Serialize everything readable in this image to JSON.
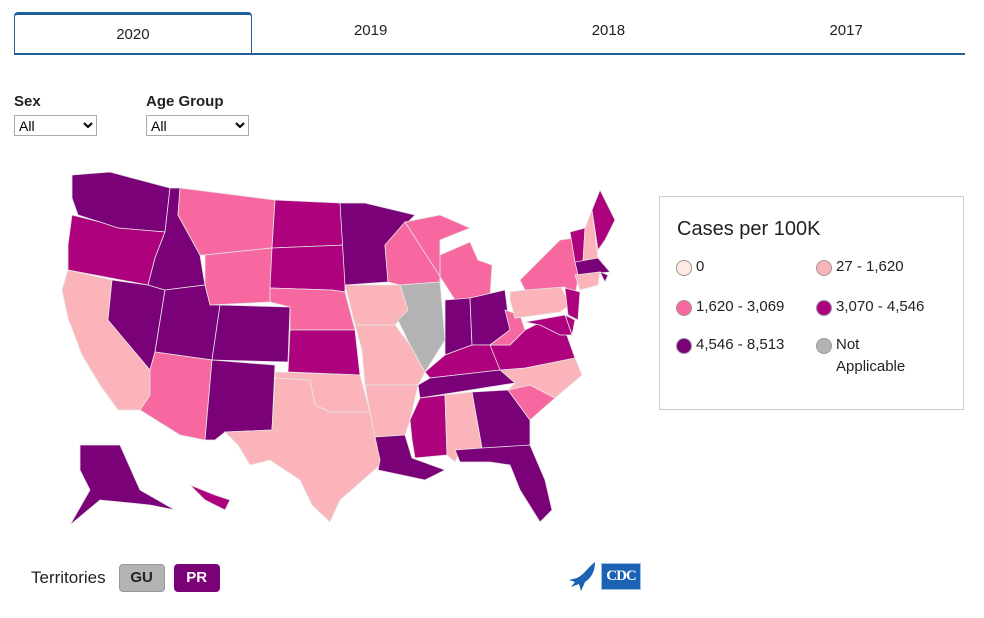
{
  "tabs": [
    "2020",
    "2019",
    "2018",
    "2017"
  ],
  "active_tab": "2020",
  "filters": {
    "sex": {
      "label": "Sex",
      "value": "All"
    },
    "age": {
      "label": "Age Group",
      "value": "All"
    }
  },
  "legend": {
    "title": "Cases per 100K",
    "bins": [
      {
        "key": "zero",
        "label": "0",
        "color": "#feebe2"
      },
      {
        "key": "b1",
        "label": "27 - 1,620",
        "color": "#fbb4b9"
      },
      {
        "key": "b2",
        "label": "1,620 - 3,069",
        "color": "#f768a1"
      },
      {
        "key": "b3",
        "label": "3,070 - 4,546",
        "color": "#ae017e"
      },
      {
        "key": "b4",
        "label": "4,546 - 8,513",
        "color": "#7a0177"
      },
      {
        "key": "na",
        "label": "Not Applicable",
        "color": "#b3b3b3"
      }
    ]
  },
  "states": {
    "WA": "b4",
    "OR": "b3",
    "CA": "b1",
    "NV": "b4",
    "ID": "b4",
    "MT": "b2",
    "WY": "b2",
    "UT": "b4",
    "CO": "b4",
    "AZ": "b2",
    "NM": "b4",
    "ND": "b3",
    "SD": "b3",
    "NE": "b2",
    "KS": "b3",
    "OK": "b1",
    "TX": "b1",
    "MN": "b4",
    "IA": "b1",
    "MO": "b1",
    "AR": "b1",
    "LA": "b4",
    "WI": "b2",
    "IL": "na",
    "MI": "b2",
    "IN": "b4",
    "OH": "b4",
    "KY": "b3",
    "TN": "b4",
    "MS": "b3",
    "AL": "b1",
    "GA": "b4",
    "FL": "b4",
    "SC": "b2",
    "NC": "b1",
    "VA": "b3",
    "WV": "b2",
    "PA": "b1",
    "NY": "b2",
    "VT": "b3",
    "NH": "b1",
    "ME": "b3",
    "MA": "b4",
    "RI": "b4",
    "CT": "b1",
    "NJ": "b3",
    "DE": "b3",
    "MD": "b3",
    "AK": "b4",
    "HI": "b3"
  },
  "territories": {
    "label": "Territories",
    "items": [
      {
        "name": "GU",
        "bin": "na"
      },
      {
        "name": "PR",
        "bin": "b4"
      }
    ]
  },
  "logo": {
    "text": "CDC"
  }
}
